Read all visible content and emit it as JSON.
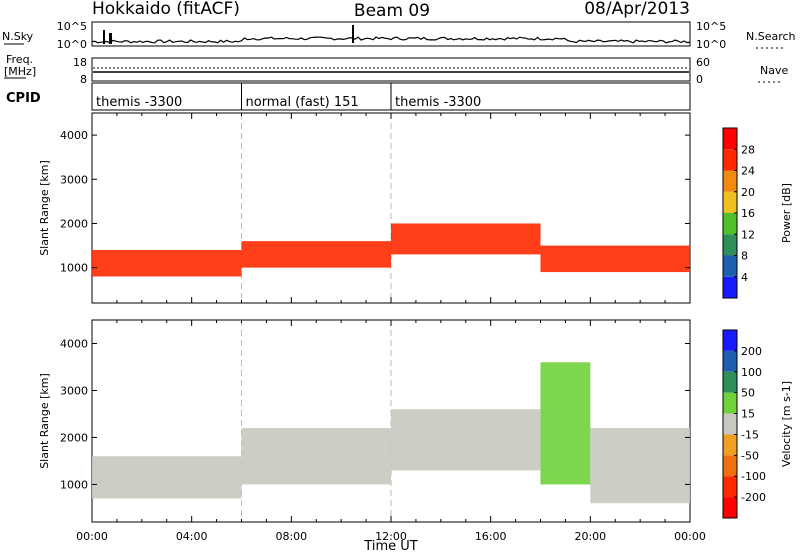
{
  "header": {
    "station": "Hokkaido (fitACF)",
    "beam": "Beam 09",
    "date": "08/Apr/2013"
  },
  "summary_panels": {
    "nsky_label": "N.Sky",
    "nsearch_label": "N.Search",
    "nsky_ticks": [
      "10^5",
      "10^0"
    ],
    "nsearch_ticks": [
      "10^5",
      "10^0"
    ],
    "freq_label_1": "Freq.",
    "freq_label_2": "[MHz]",
    "freq_ticks": [
      "18",
      "8"
    ],
    "nave_label": "Nave",
    "nave_ticks": [
      "60",
      "0"
    ],
    "cpid_label": "CPID",
    "cpid_segments": [
      {
        "label": "themis -3300",
        "start_hour": 0,
        "end_hour": 6
      },
      {
        "label": "normal (fast) 151",
        "start_hour": 6,
        "end_hour": 12
      },
      {
        "label": "themis -3300",
        "start_hour": 12,
        "end_hour": 24
      }
    ]
  },
  "chart_data": [
    {
      "type": "heatmap",
      "name": "power",
      "ylabel": "Slant Range [km]",
      "xlim": [
        0,
        24
      ],
      "ylim": [
        200,
        4500
      ],
      "yticks": [
        1000,
        2000,
        3000,
        4000
      ],
      "colorbar": {
        "label": "Power [dB]",
        "ticks": [
          "4",
          "8",
          "12",
          "16",
          "20",
          "24",
          "28"
        ],
        "colors": [
          "#1a1aff",
          "#1e5fb0",
          "#2e8f5a",
          "#4fbf2a",
          "#f0c020",
          "#f08a10",
          "#ff2a00",
          "#ff0000"
        ]
      },
      "bands": [
        {
          "hour": [
            0,
            6
          ],
          "range_km": [
            800,
            1400
          ],
          "level_db": 28
        },
        {
          "hour": [
            6,
            12
          ],
          "range_km": [
            1000,
            1600
          ],
          "level_db": 28
        },
        {
          "hour": [
            12,
            18
          ],
          "range_km": [
            1300,
            2000
          ],
          "level_db": 28
        },
        {
          "hour": [
            18,
            24
          ],
          "range_km": [
            900,
            1500
          ],
          "level_db": 28
        }
      ]
    },
    {
      "type": "heatmap",
      "name": "velocity",
      "ylabel": "Slant Range [km]",
      "xlabel": "Time UT",
      "xlim": [
        0,
        24
      ],
      "ylim": [
        200,
        4500
      ],
      "yticks": [
        1000,
        2000,
        3000,
        4000
      ],
      "xticks": [
        "00:00",
        "04:00",
        "08:00",
        "12:00",
        "16:00",
        "20:00",
        "00:00"
      ],
      "colorbar": {
        "label": "Velocity [m s-1]",
        "ticks": [
          "200",
          "100",
          "50",
          "15",
          "-15",
          "-50",
          "-100",
          "-200"
        ],
        "colors": [
          "#1a1aff",
          "#1e5fb0",
          "#2e8f5a",
          "#6fd23a",
          "#c8c8c0",
          "#f0a020",
          "#f07010",
          "#ff2a00",
          "#ff0000"
        ]
      },
      "bands": [
        {
          "hour": [
            0,
            6
          ],
          "range_km": [
            700,
            1600
          ],
          "velocity_ms": 0
        },
        {
          "hour": [
            6,
            12
          ],
          "range_km": [
            1000,
            2200
          ],
          "velocity_ms": 0
        },
        {
          "hour": [
            12,
            18
          ],
          "range_km": [
            1300,
            2600
          ],
          "velocity_ms": 0
        },
        {
          "hour": [
            18,
            20
          ],
          "range_km": [
            1000,
            3600
          ],
          "velocity_ms": 30
        },
        {
          "hour": [
            20,
            24
          ],
          "range_km": [
            600,
            2200
          ],
          "velocity_ms": 0
        }
      ]
    }
  ]
}
